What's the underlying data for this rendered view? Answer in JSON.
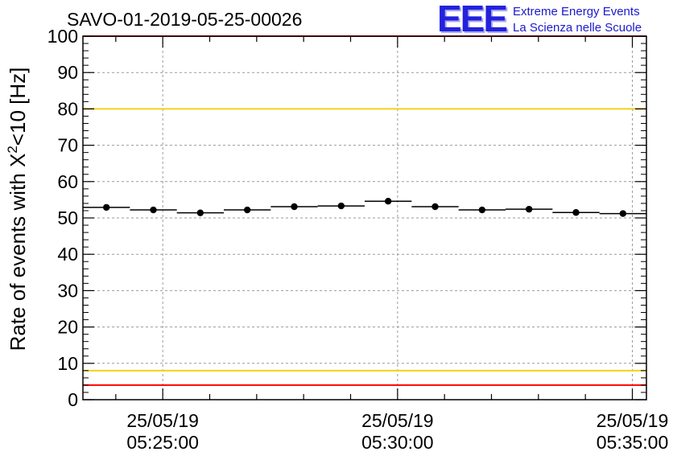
{
  "title": "SAVO-01-2019-05-25-00026",
  "logo": {
    "mark": "EEE",
    "line1": "Extreme Energy Events",
    "line2": "La Scienza nelle Scuole"
  },
  "chart_data": {
    "type": "scatter",
    "title": "SAVO-01-2019-05-25-00026",
    "xlabel": "",
    "ylabel_prefix": "Rate of events with X",
    "ylabel_sup": "2",
    "ylabel_suffix": "<10 [Hz]",
    "ylim": [
      0,
      100
    ],
    "yticks": [
      0,
      10,
      20,
      30,
      40,
      50,
      60,
      70,
      80,
      90,
      100
    ],
    "xlim_min": [
      23.3,
      35.3
    ],
    "xticks": [
      {
        "min": 25,
        "date": "25/05/19",
        "time": "05:25:00"
      },
      {
        "min": 30,
        "date": "25/05/19",
        "time": "05:30:00"
      },
      {
        "min": 35,
        "date": "25/05/19",
        "time": "05:35:00"
      }
    ],
    "bin_width_min": 1.0,
    "grid": true,
    "points": [
      {
        "x": 23.8,
        "y": 52.9
      },
      {
        "x": 24.8,
        "y": 52.2
      },
      {
        "x": 25.8,
        "y": 51.4
      },
      {
        "x": 26.8,
        "y": 52.2
      },
      {
        "x": 27.8,
        "y": 53.1
      },
      {
        "x": 28.8,
        "y": 53.3
      },
      {
        "x": 29.8,
        "y": 54.6
      },
      {
        "x": 30.8,
        "y": 53.1
      },
      {
        "x": 31.8,
        "y": 52.2
      },
      {
        "x": 32.8,
        "y": 52.4
      },
      {
        "x": 33.8,
        "y": 51.5
      },
      {
        "x": 34.8,
        "y": 51.2
      }
    ],
    "reference_lines": [
      {
        "y": 100,
        "color": "#ff0000"
      },
      {
        "y": 80,
        "color": "#f2d21a"
      },
      {
        "y": 8,
        "color": "#f2d21a"
      },
      {
        "y": 4,
        "color": "#ff0000"
      }
    ]
  }
}
